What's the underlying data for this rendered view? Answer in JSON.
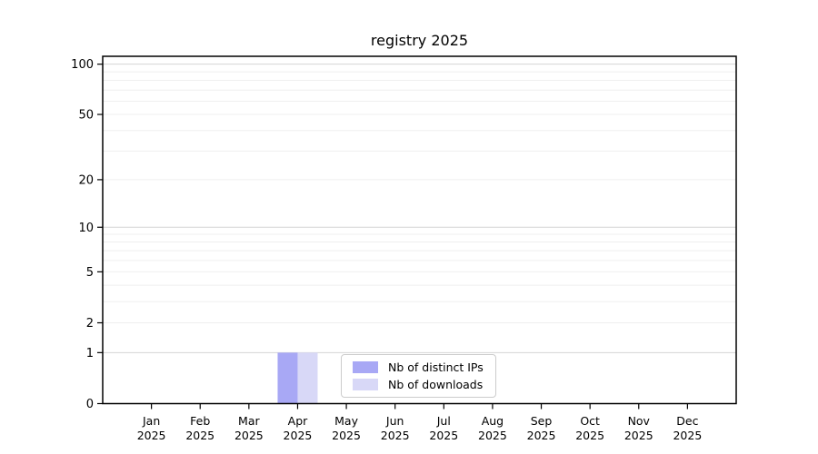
{
  "chart_data": {
    "type": "bar",
    "title": "registry 2025",
    "categories": [
      "Jan",
      "Feb",
      "Mar",
      "Apr",
      "May",
      "Jun",
      "Jul",
      "Aug",
      "Sep",
      "Oct",
      "Nov",
      "Dec"
    ],
    "year_label": "2025",
    "series": [
      {
        "name": "Nb of distinct IPs",
        "color": "#a8a8f5",
        "values": [
          0,
          0,
          0,
          1,
          0,
          0,
          0,
          0,
          0,
          0,
          0,
          0
        ]
      },
      {
        "name": "Nb of downloads",
        "color": "#d8d8f7",
        "values": [
          0,
          0,
          0,
          1,
          0,
          0,
          0,
          0,
          0,
          0,
          0,
          0
        ]
      }
    ],
    "yscale": "symlog-log1p",
    "ylim": [
      0,
      112
    ],
    "yticks": [
      0,
      1,
      2,
      5,
      10,
      20,
      50,
      100
    ],
    "grid": {
      "major": [
        1,
        10,
        100
      ],
      "minor": [
        2,
        3,
        4,
        5,
        6,
        7,
        8,
        9,
        20,
        30,
        40,
        50,
        60,
        70,
        80,
        90
      ],
      "major_color": "#d4d4d4",
      "minor_color": "#efefef"
    },
    "legend_position": "lower center",
    "axis_color": "#000000",
    "background_color": "#ffffff"
  }
}
